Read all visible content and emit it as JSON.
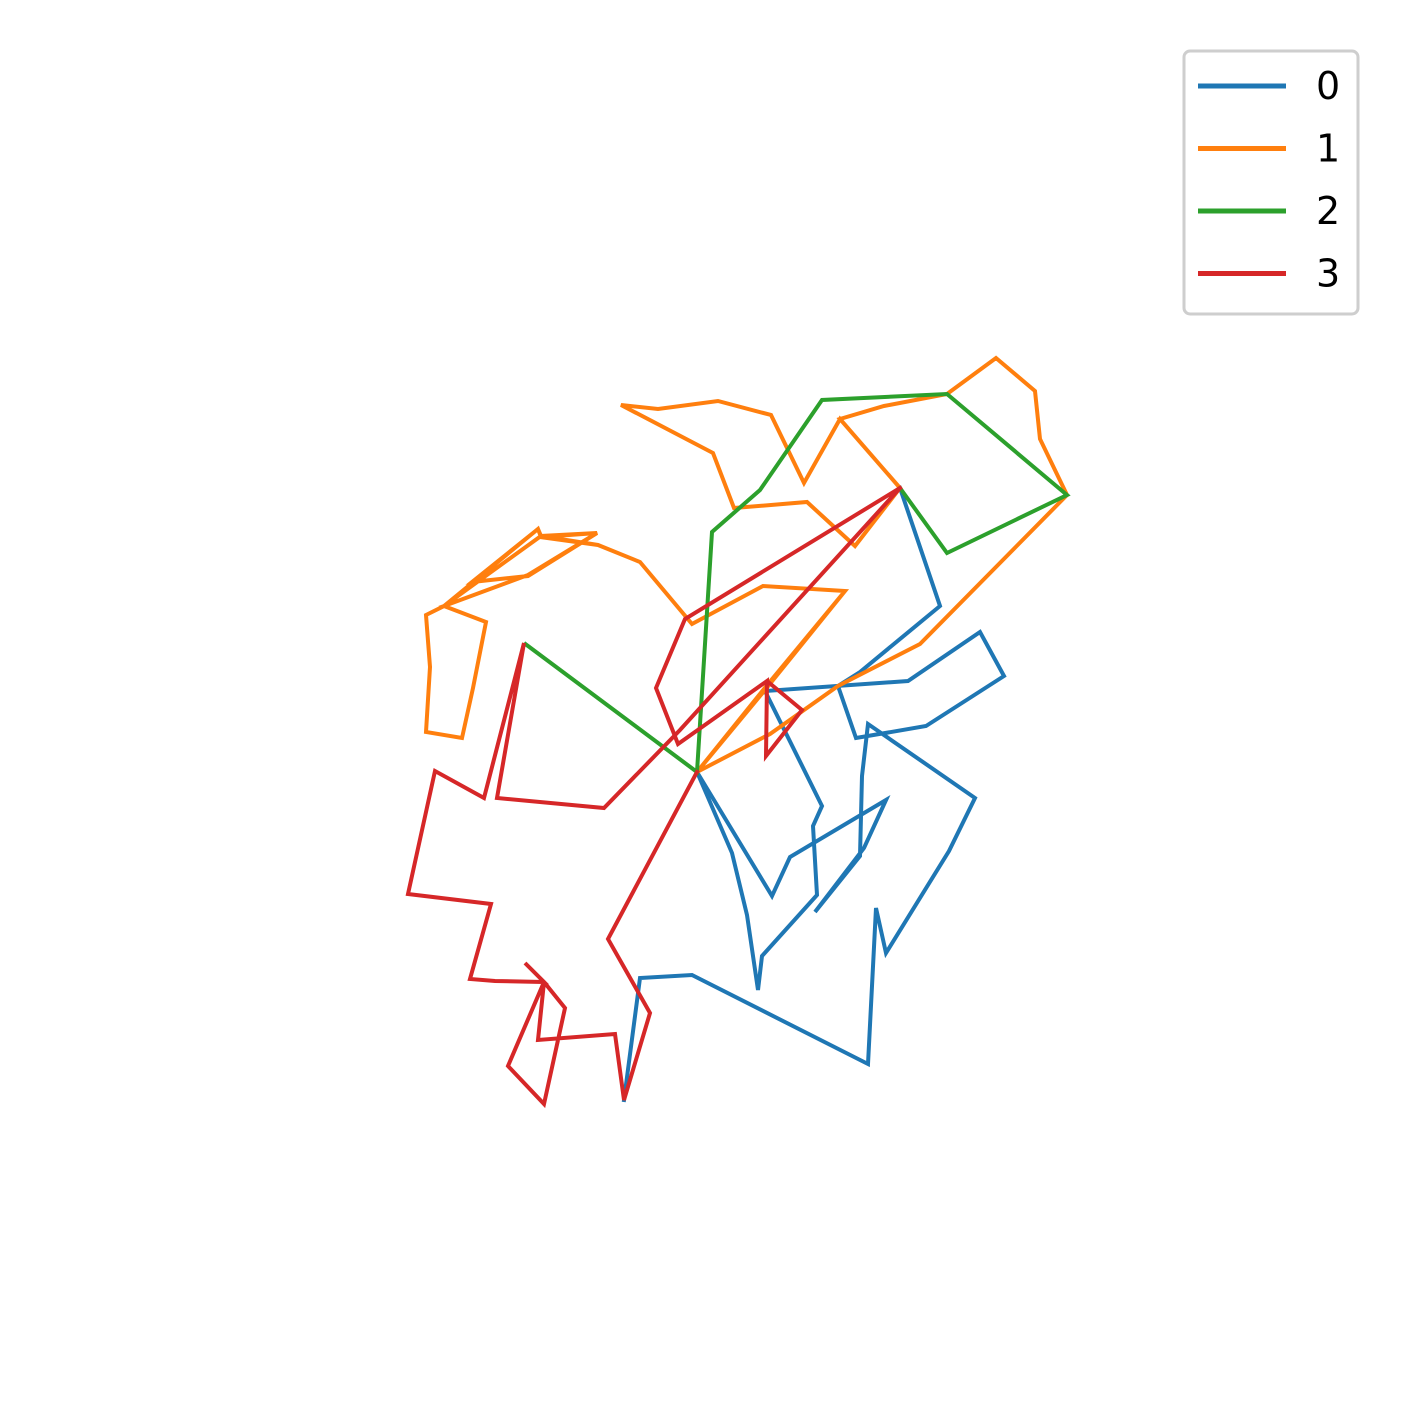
{
  "chart_data": {
    "type": "line",
    "title": "",
    "xlabel": "",
    "ylabel": "",
    "axes_visible": false,
    "grid": false,
    "legend_placement": "top-right",
    "xlim": [
      400,
      1080
    ],
    "ylim": [
      1110,
      350
    ],
    "series": [
      {
        "name": "0",
        "color": "#1f77b4",
        "points": [
          [
            900,
            488
          ],
          [
            940,
            606
          ],
          [
            860,
            672
          ],
          [
            838,
            686
          ],
          [
            856,
            738
          ],
          [
            926,
            726
          ],
          [
            1004,
            676
          ],
          [
            980,
            632
          ],
          [
            908,
            681
          ],
          [
            765,
            691
          ],
          [
            822,
            806
          ],
          [
            813,
            826
          ],
          [
            817,
            895
          ],
          [
            762,
            956
          ],
          [
            758,
            990
          ],
          [
            747,
            915
          ],
          [
            732,
            853
          ],
          [
            697,
            772
          ],
          [
            772,
            896
          ],
          [
            790,
            857
          ],
          [
            886,
            800
          ],
          [
            864,
            848
          ],
          [
            815,
            912
          ],
          [
            860,
            856
          ],
          [
            862,
            776
          ],
          [
            868,
            724
          ],
          [
            975,
            798
          ],
          [
            949,
            851
          ],
          [
            886,
            953
          ],
          [
            876,
            908
          ],
          [
            868,
            1064
          ],
          [
            692,
            975
          ],
          [
            640,
            978
          ],
          [
            624,
            1100
          ]
        ]
      },
      {
        "name": "1",
        "color": "#ff7f0e",
        "points": [
          [
            697,
            772
          ],
          [
            765,
            690
          ],
          [
            845,
            591
          ],
          [
            763,
            586
          ],
          [
            692,
            624
          ],
          [
            640,
            562
          ],
          [
            598,
            545
          ],
          [
            541,
            536
          ],
          [
            538,
            529
          ],
          [
            444,
            606
          ],
          [
            426,
            615
          ],
          [
            430,
            667
          ],
          [
            426,
            732
          ],
          [
            462,
            738
          ],
          [
            473,
            688
          ],
          [
            486,
            622
          ],
          [
            444,
            606
          ],
          [
            528,
            575
          ],
          [
            597,
            533
          ],
          [
            541,
            537
          ],
          [
            538,
            529
          ],
          [
            472,
            582
          ],
          [
            528,
            576
          ],
          [
            597,
            533
          ],
          [
            541,
            536
          ],
          [
            444,
            606
          ],
          [
            426,
            615
          ],
          [
            430,
            667
          ],
          [
            426,
            732
          ],
          [
            462,
            738
          ],
          [
            473,
            688
          ],
          [
            486,
            622
          ],
          [
            444,
            606
          ],
          [
            528,
            575
          ],
          [
            597,
            533
          ],
          [
            540,
            537
          ],
          [
            598,
            545
          ],
          [
            640,
            562
          ],
          [
            692,
            624
          ],
          [
            763,
            586
          ],
          [
            845,
            591
          ],
          [
            768,
            684
          ],
          [
            697,
            772
          ],
          [
            770,
            734
          ],
          [
            838,
            686
          ],
          [
            920,
            644
          ],
          [
            1067,
            495
          ],
          [
            1040,
            439
          ],
          [
            1035,
            391
          ],
          [
            996,
            358
          ],
          [
            947,
            394
          ],
          [
            884,
            406
          ],
          [
            840,
            419
          ],
          [
            900,
            488
          ],
          [
            855,
            546
          ],
          [
            807,
            502
          ],
          [
            734,
            508
          ],
          [
            713,
            453
          ],
          [
            621,
            405
          ],
          [
            658,
            409
          ],
          [
            718,
            401
          ],
          [
            771,
            415
          ],
          [
            804,
            483
          ],
          [
            840,
            419
          ],
          [
            900,
            488
          ]
        ]
      },
      {
        "name": "2",
        "color": "#2ca02c",
        "points": [
          [
            697,
            772
          ],
          [
            524,
            643
          ],
          [
            697,
            772
          ],
          [
            712,
            532
          ],
          [
            760,
            490
          ],
          [
            822,
            400
          ],
          [
            947,
            394
          ],
          [
            1067,
            495
          ],
          [
            947,
            553
          ],
          [
            900,
            488
          ]
        ]
      },
      {
        "name": "3",
        "color": "#d62728",
        "points": [
          [
            900,
            488
          ],
          [
            685,
            619
          ],
          [
            656,
            688
          ],
          [
            678,
            744
          ],
          [
            767,
            681
          ],
          [
            802,
            710
          ],
          [
            766,
            756
          ],
          [
            767,
            681
          ],
          [
            678,
            744
          ],
          [
            656,
            688
          ],
          [
            685,
            619
          ],
          [
            900,
            488
          ],
          [
            680,
            730
          ],
          [
            604,
            808
          ],
          [
            497,
            798
          ],
          [
            524,
            643
          ],
          [
            484,
            798
          ],
          [
            435,
            771
          ],
          [
            408,
            894
          ],
          [
            491,
            904
          ],
          [
            470,
            979
          ],
          [
            495,
            981
          ],
          [
            544,
            982
          ],
          [
            525,
            963
          ],
          [
            544,
            982
          ],
          [
            565,
            1008
          ],
          [
            544,
            1104
          ],
          [
            508,
            1066
          ],
          [
            544,
            982
          ],
          [
            538,
            1040
          ],
          [
            615,
            1034
          ],
          [
            624,
            1100
          ],
          [
            650,
            1013
          ],
          [
            608,
            939
          ],
          [
            697,
            772
          ]
        ]
      }
    ]
  }
}
